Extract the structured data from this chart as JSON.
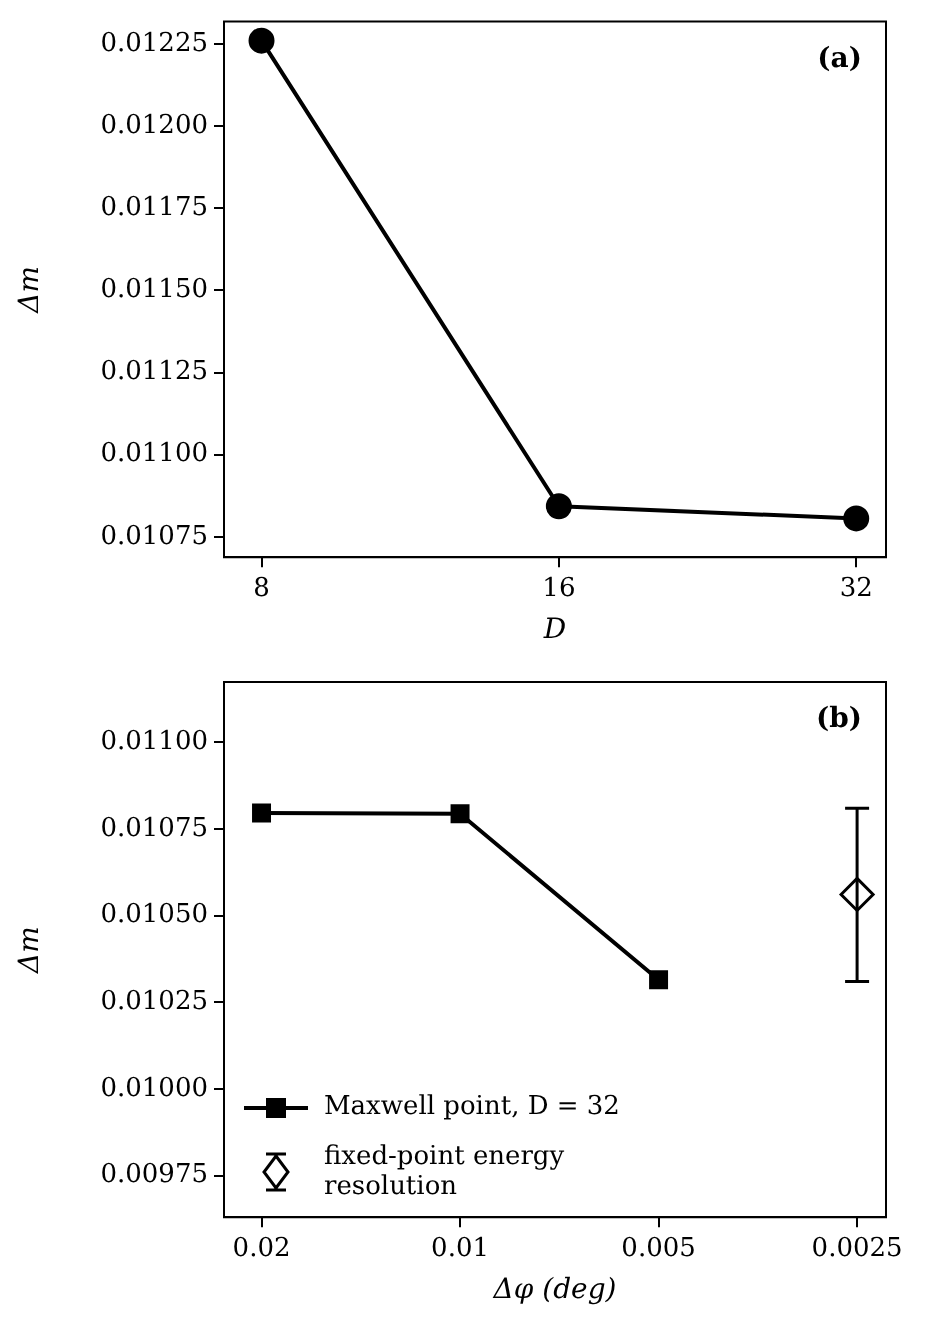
{
  "chart_data": [
    {
      "type": "line",
      "xlabel": "D",
      "ylabel": "Δm",
      "log": "x",
      "xlim": [
        7.33,
        34.3
      ],
      "xticks": [
        8,
        16,
        32
      ],
      "ylim": [
        0.010688,
        0.012318
      ],
      "yticks": [
        {
          "value": 0.01075,
          "label": "0.01075"
        },
        {
          "value": 0.011,
          "label": "0.01100"
        },
        {
          "value": 0.01125,
          "label": "0.01125"
        },
        {
          "value": 0.0115,
          "label": "0.01150"
        },
        {
          "value": 0.01175,
          "label": "0.01175"
        },
        {
          "value": 0.012,
          "label": "0.01200"
        },
        {
          "value": 0.01225,
          "label": "0.01225"
        }
      ],
      "grid": false,
      "marker": "circle",
      "line_style": "solid",
      "annotations": [
        "(a)"
      ],
      "series": [
        {
          "color": "#000000",
          "x": [
            8,
            16,
            32
          ],
          "values": [
            0.01226,
            0.010843,
            0.010806
          ]
        }
      ]
    },
    {
      "type": "line",
      "xlabel": "Δφ (deg)",
      "ylabel": "Δm",
      "log": "x",
      "xlim": [
        0.0228,
        0.00226
      ],
      "xticks": [
        0.02,
        0.01,
        0.005,
        0.0025
      ],
      "ylim": [
        0.00963,
        0.011174
      ],
      "yticks": [
        {
          "value": 0.00975,
          "label": "0.00975"
        },
        {
          "value": 0.01,
          "label": "0.01000"
        },
        {
          "value": 0.01025,
          "label": "0.01025"
        },
        {
          "value": 0.0105,
          "label": "0.01050"
        },
        {
          "value": 0.01075,
          "label": "0.01075"
        },
        {
          "value": 0.011,
          "label": "0.01100"
        }
      ],
      "grid": false,
      "legend": "bottom left",
      "annotations": [
        "(b)"
      ],
      "series": [
        {
          "name": "Maxwell point, D = 32",
          "type": "line",
          "marker": "square",
          "color": "#000000",
          "x": [
            0.02,
            0.01,
            0.005
          ],
          "values": [
            0.010796,
            0.010794,
            0.010315
          ]
        },
        {
          "name": "fixed-point energy resolution",
          "type": "scatter",
          "marker": "diamond",
          "color": "#000000",
          "x": [
            0.0025
          ],
          "values": [
            0.010561
          ],
          "errors": [
            [
              0.01031,
              0.01081
            ]
          ]
        }
      ]
    }
  ]
}
